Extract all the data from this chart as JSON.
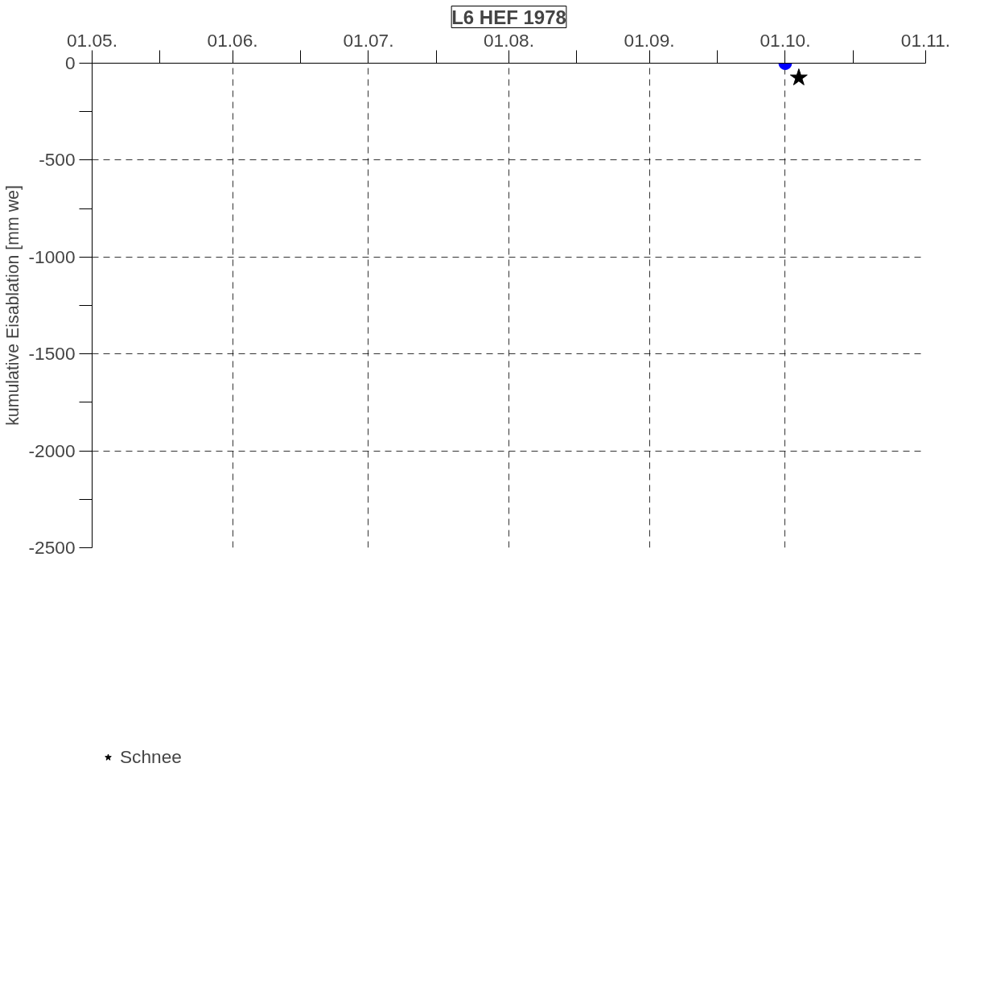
{
  "chart_data": {
    "type": "scatter",
    "title": "L6 HEF 1978",
    "ylabel": "kumulative Eisablation [mm we]",
    "xlim": [
      "1978-05-01",
      "1978-11-01"
    ],
    "xticks": [
      {
        "value": "1978-05-01",
        "label": "01.05."
      },
      {
        "value": "1978-05-16",
        "label": null
      },
      {
        "value": "1978-06-01",
        "label": "01.06."
      },
      {
        "value": "1978-06-16",
        "label": null
      },
      {
        "value": "1978-07-01",
        "label": "01.07."
      },
      {
        "value": "1978-07-16",
        "label": null
      },
      {
        "value": "1978-08-01",
        "label": "01.08."
      },
      {
        "value": "1978-08-16",
        "label": null
      },
      {
        "value": "1978-09-01",
        "label": "01.09."
      },
      {
        "value": "1978-09-16",
        "label": null
      },
      {
        "value": "1978-10-01",
        "label": "01.10."
      },
      {
        "value": "1978-10-16",
        "label": null
      },
      {
        "value": "1978-11-01",
        "label": "01.11."
      }
    ],
    "ylim": [
      -2500,
      0
    ],
    "yticks": [
      0,
      {
        "value": -250,
        "label": null
      },
      -500,
      {
        "value": -750,
        "label": null
      },
      -1000,
      {
        "value": -1250,
        "label": null
      },
      -1500,
      {
        "value": -1750,
        "label": null
      },
      -2000,
      {
        "value": -2250,
        "label": null
      },
      -2500
    ],
    "grid": true,
    "legend": "bottom left",
    "series": [
      {
        "color": "#0000ff",
        "marker": "circle",
        "x": [
          "1978-10-01"
        ],
        "values": [
          0
        ]
      },
      {
        "name": "Schnee",
        "color": "#000000",
        "marker": "star",
        "x": [
          "1978-10-04"
        ],
        "values": [
          -75
        ]
      }
    ]
  }
}
